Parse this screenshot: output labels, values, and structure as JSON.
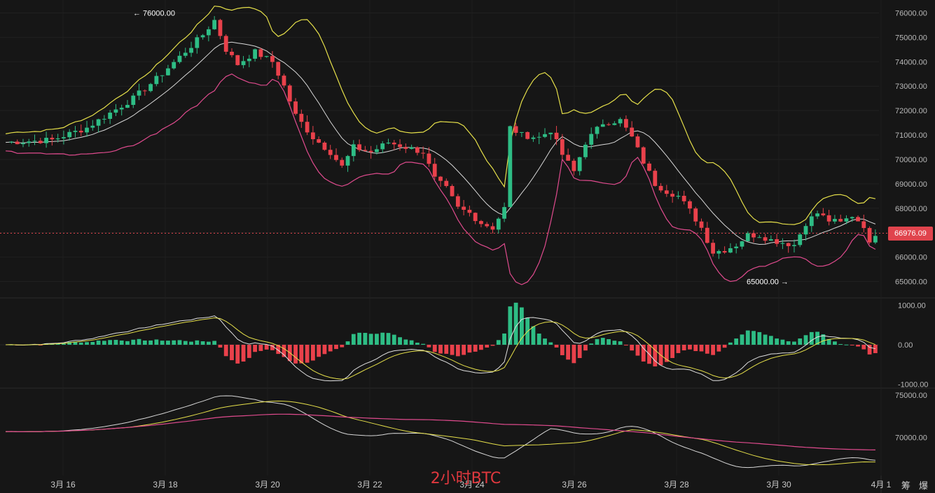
{
  "watermark": "2小时BTC",
  "corner_text": "筹 爆",
  "chart_data": [
    {
      "type": "candlestick",
      "panel": "price",
      "y_ticks": [
        "76000.00",
        "75000.00",
        "74000.00",
        "73000.00",
        "72000.00",
        "71000.00",
        "70000.00",
        "69000.00",
        "68000.00",
        "67000.00",
        "66000.00",
        "65000.00"
      ],
      "ylim": [
        64500,
        76300
      ],
      "current_price": "66976.09",
      "annotations": [
        {
          "text": "← 76000.00",
          "price": 76000
        },
        {
          "text": "65000.00 →",
          "price": 65000
        }
      ],
      "x_dates": [
        "3月 16",
        "3月 18",
        "3月 20",
        "3月 22",
        "3月 24",
        "3月 26",
        "3月 28",
        "3月 30",
        "4月 1"
      ],
      "close_path": [
        [
          0,
          70700
        ],
        [
          8,
          70800
        ],
        [
          14,
          71300
        ],
        [
          18,
          71900
        ],
        [
          22,
          72500
        ],
        [
          26,
          73300
        ],
        [
          30,
          74200
        ],
        [
          34,
          75100
        ],
        [
          36,
          75700
        ],
        [
          38,
          74500
        ],
        [
          40,
          73900
        ],
        [
          43,
          74400
        ],
        [
          46,
          74000
        ],
        [
          48,
          73000
        ],
        [
          50,
          71800
        ],
        [
          53,
          70900
        ],
        [
          56,
          70300
        ],
        [
          58,
          69700
        ],
        [
          60,
          70500
        ],
        [
          63,
          70300
        ],
        [
          66,
          70700
        ],
        [
          69,
          70500
        ],
        [
          72,
          70300
        ],
        [
          74,
          69200
        ],
        [
          76,
          68800
        ],
        [
          78,
          68000
        ],
        [
          80,
          67800
        ],
        [
          82,
          67400
        ],
        [
          84,
          67200
        ],
        [
          86,
          68000
        ],
        [
          87,
          71300
        ],
        [
          89,
          71000
        ],
        [
          92,
          70900
        ],
        [
          94,
          71200
        ],
        [
          96,
          70200
        ],
        [
          98,
          69500
        ],
        [
          100,
          70700
        ],
        [
          103,
          71500
        ],
        [
          106,
          71600
        ],
        [
          108,
          70900
        ],
        [
          110,
          69900
        ],
        [
          112,
          69000
        ],
        [
          114,
          68700
        ],
        [
          116,
          68500
        ],
        [
          118,
          67900
        ],
        [
          120,
          67200
        ],
        [
          122,
          66200
        ],
        [
          124,
          66300
        ],
        [
          126,
          66500
        ],
        [
          128,
          66900
        ],
        [
          130,
          66900
        ],
        [
          132,
          66700
        ],
        [
          134,
          66600
        ],
        [
          136,
          66500
        ],
        [
          138,
          67400
        ],
        [
          140,
          67800
        ],
        [
          142,
          67500
        ],
        [
          144,
          67400
        ],
        [
          146,
          67700
        ],
        [
          148,
          67300
        ],
        [
          149,
          66500
        ],
        [
          150,
          66976
        ]
      ]
    },
    {
      "type": "bar",
      "panel": "macd",
      "y_ticks": [
        "1000.00",
        "0.00",
        "-1000.00"
      ],
      "ylim": [
        -1080,
        1080
      ]
    },
    {
      "type": "line",
      "panel": "lower",
      "y_ticks": [
        "75000.00",
        "70000.00"
      ],
      "ylim": [
        65500,
        75600
      ]
    }
  ]
}
